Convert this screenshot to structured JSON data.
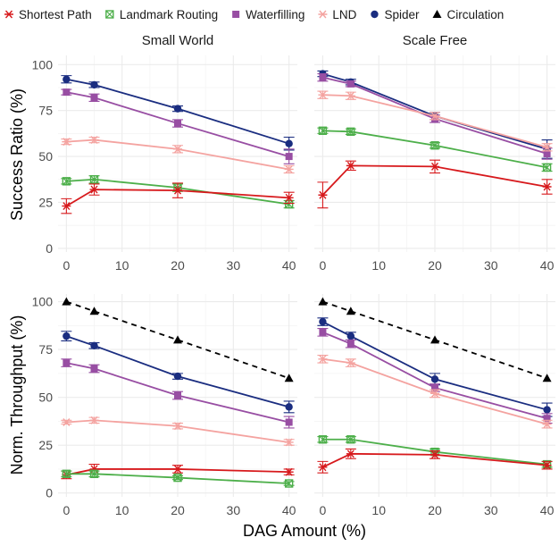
{
  "chart_data": {
    "type": "line",
    "xlabel": "DAG Amount (%)",
    "x_ticks": [
      0,
      10,
      20,
      30,
      40
    ],
    "xlim": [
      -1.5,
      41.5
    ],
    "legend_position": "top",
    "legend": [
      {
        "name": "Shortest Path",
        "color": "#d7191c",
        "marker": "asterisk"
      },
      {
        "name": "Landmark Routing",
        "color": "#4daf4a",
        "marker": "square-cross"
      },
      {
        "name": "Waterfilling",
        "color": "#984ea3",
        "marker": "square"
      },
      {
        "name": "LND",
        "color": "#f4a3a0",
        "marker": "asterisk"
      },
      {
        "name": "Spider",
        "color": "#1a2d80",
        "marker": "circle"
      },
      {
        "name": "Circulation",
        "color": "#000000",
        "marker": "triangle"
      }
    ],
    "rows": [
      {
        "ylabel": "Success Ratio (%)",
        "ylim": [
          -2,
          105
        ],
        "y_ticks": [
          0,
          25,
          50,
          75,
          100
        ]
      },
      {
        "ylabel": "Norm. Throughput (%)",
        "ylim": [
          -2,
          104
        ],
        "y_ticks": [
          0,
          25,
          50,
          75,
          100
        ]
      }
    ],
    "columns": [
      "Small World",
      "Scale Free"
    ],
    "panels": [
      {
        "row": 0,
        "col": 0,
        "series": [
          {
            "name": "Spider",
            "x": [
              0,
              5,
              20,
              40
            ],
            "y": [
              92,
              89,
              76,
              57
            ],
            "err": [
              2,
              1.5,
              1.5,
              3.5
            ]
          },
          {
            "name": "Waterfilling",
            "x": [
              0,
              5,
              20,
              40
            ],
            "y": [
              85,
              82,
              68,
              50
            ],
            "err": [
              1.5,
              2,
              2,
              4
            ]
          },
          {
            "name": "LND",
            "x": [
              0,
              5,
              20,
              40
            ],
            "y": [
              58,
              59,
              54,
              43
            ],
            "err": [
              1.5,
              1.5,
              2,
              2
            ]
          },
          {
            "name": "Landmark Routing",
            "x": [
              0,
              5,
              20,
              40
            ],
            "y": [
              36.5,
              37.5,
              33,
              24
            ],
            "err": [
              1.5,
              2,
              2,
              2
            ]
          },
          {
            "name": "Shortest Path",
            "x": [
              0,
              5,
              20,
              40
            ],
            "y": [
              23,
              32,
              31.5,
              27.5
            ],
            "err": [
              4,
              3,
              4,
              3
            ]
          }
        ]
      },
      {
        "row": 0,
        "col": 1,
        "series": [
          {
            "name": "Spider",
            "x": [
              0,
              5,
              20,
              40
            ],
            "y": [
              95,
              90.5,
              72,
              54
            ],
            "err": [
              1.5,
              1.5,
              2,
              5
            ]
          },
          {
            "name": "Waterfilling",
            "x": [
              0,
              5,
              20,
              40
            ],
            "y": [
              93,
              89.5,
              70.5,
              51.5
            ],
            "err": [
              2,
              1.5,
              2,
              3
            ]
          },
          {
            "name": "LND",
            "x": [
              0,
              5,
              20,
              40
            ],
            "y": [
              83.5,
              83,
              72,
              55
            ],
            "err": [
              2,
              2,
              2,
              2
            ]
          },
          {
            "name": "Landmark Routing",
            "x": [
              0,
              5,
              20,
              40
            ],
            "y": [
              64,
              63.5,
              56,
              44
            ],
            "err": [
              1.5,
              1.5,
              1.5,
              2
            ]
          },
          {
            "name": "Shortest Path",
            "x": [
              0,
              5,
              20,
              40
            ],
            "y": [
              29,
              45,
              44.5,
              33.5
            ],
            "err": [
              7,
              2.5,
              3.5,
              4
            ]
          }
        ]
      },
      {
        "row": 1,
        "col": 0,
        "series": [
          {
            "name": "Circulation",
            "x": [
              0,
              5,
              20,
              40
            ],
            "y": [
              100,
              95,
              80,
              60
            ],
            "err": [
              0,
              0,
              0,
              0
            ],
            "dashed": true
          },
          {
            "name": "Spider",
            "x": [
              0,
              5,
              20,
              40
            ],
            "y": [
              82,
              77,
              61,
              45
            ],
            "err": [
              2.5,
              1.5,
              1.5,
              3
            ]
          },
          {
            "name": "Waterfilling",
            "x": [
              0,
              5,
              20,
              40
            ],
            "y": [
              68,
              65,
              51,
              37
            ],
            "err": [
              2,
              2,
              2,
              3
            ]
          },
          {
            "name": "LND",
            "x": [
              0,
              5,
              20,
              40
            ],
            "y": [
              37,
              38,
              35,
              26.5
            ],
            "err": [
              1,
              1.5,
              1.5,
              1.5
            ]
          },
          {
            "name": "Shortest Path",
            "x": [
              0,
              5,
              20,
              40
            ],
            "y": [
              9.5,
              12.5,
              12.5,
              11
            ],
            "err": [
              2,
              2.5,
              2,
              1.5
            ]
          },
          {
            "name": "Landmark Routing",
            "x": [
              0,
              5,
              20,
              40
            ],
            "y": [
              10,
              10,
              8,
              5
            ],
            "err": [
              1.5,
              1.5,
              1,
              1
            ]
          }
        ]
      },
      {
        "row": 1,
        "col": 1,
        "series": [
          {
            "name": "Circulation",
            "x": [
              0,
              5,
              20,
              40
            ],
            "y": [
              100,
              95,
              80,
              60
            ],
            "err": [
              0,
              0,
              0,
              0
            ],
            "dashed": true
          },
          {
            "name": "Spider",
            "x": [
              0,
              5,
              20,
              40
            ],
            "y": [
              89.5,
              82,
              59.5,
              43.5
            ],
            "err": [
              2,
              2,
              3,
              3.5
            ]
          },
          {
            "name": "Waterfilling",
            "x": [
              0,
              5,
              20,
              40
            ],
            "y": [
              84,
              78,
              55,
              39
            ],
            "err": [
              2,
              2,
              2,
              2.5
            ]
          },
          {
            "name": "LND",
            "x": [
              0,
              5,
              20,
              40
            ],
            "y": [
              70,
              68,
              52,
              36
            ],
            "err": [
              2,
              2,
              2,
              2
            ]
          },
          {
            "name": "Landmark Routing",
            "x": [
              0,
              5,
              20,
              40
            ],
            "y": [
              28,
              28,
              21.5,
              15
            ],
            "err": [
              1.5,
              1.5,
              1.5,
              1.5
            ]
          },
          {
            "name": "Shortest Path",
            "x": [
              0,
              5,
              20,
              40
            ],
            "y": [
              13.5,
              20.5,
              20,
              14.5
            ],
            "err": [
              3,
              2.5,
              2,
              2
            ]
          }
        ]
      }
    ]
  }
}
